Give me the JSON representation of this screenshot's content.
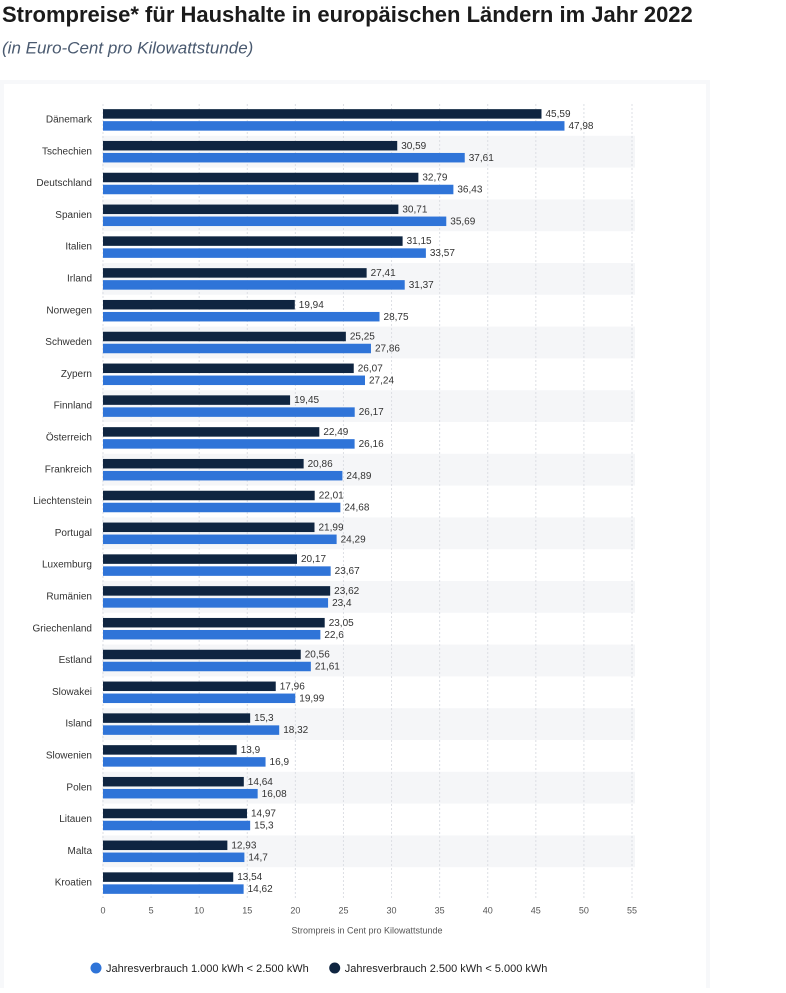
{
  "chart_data": {
    "type": "hbar",
    "title": "Strompreise* für Haushalte in europäischen Ländern im Jahr 2022",
    "subtitle": "(in Euro-Cent pro Kilowattstunde)",
    "x_label": "Strompreis in Cent pro Kilowattstunde",
    "categories": [
      "Dänemark",
      "Tschechien",
      "Deutschland",
      "Spanien",
      "Italien",
      "Irland",
      "Norwegen",
      "Schweden",
      "Zypern",
      "Finnland",
      "Österreich",
      "Frankreich",
      "Liechtenstein",
      "Portugal",
      "Luxemburg",
      "Rumänien",
      "Griechenland",
      "Estland",
      "Slowakei",
      "Island",
      "Slowenien",
      "Polen",
      "Litauen",
      "Malta",
      "Kroatien"
    ],
    "series": [
      {
        "name": "Jahresverbrauch 1.000 kWh < 2.500 kWh",
        "color": "#2f74d8",
        "values": [
          47.98,
          37.61,
          36.43,
          35.69,
          33.57,
          31.37,
          28.75,
          27.86,
          27.24,
          26.17,
          26.16,
          24.89,
          24.68,
          24.29,
          23.67,
          23.4,
          22.6,
          21.61,
          19.99,
          18.32,
          16.9,
          16.08,
          15.3,
          14.7,
          14.62
        ],
        "value_labels": [
          "47,98",
          "37,61",
          "36,43",
          "35,69",
          "33,57",
          "31,37",
          "28,75",
          "27,86",
          "27,24",
          "26,17",
          "26,16",
          "24,89",
          "24,68",
          "24,29",
          "23,67",
          "23,4",
          "22,6",
          "21,61",
          "19,99",
          "18,32",
          "16,9",
          "16,08",
          "15,3",
          "14,7",
          "14,62"
        ]
      },
      {
        "name": "Jahresverbrauch 2.500 kWh < 5.000 kWh",
        "color": "#0f2541",
        "values": [
          45.59,
          30.59,
          32.79,
          30.71,
          31.15,
          27.41,
          19.94,
          25.25,
          26.07,
          19.45,
          22.49,
          20.86,
          22.01,
          21.99,
          20.17,
          23.62,
          23.05,
          20.56,
          17.96,
          15.3,
          13.9,
          14.64,
          14.97,
          12.93,
          13.54
        ],
        "value_labels": [
          "45,59",
          "30,59",
          "32,79",
          "30,71",
          "31,15",
          "27,41",
          "19,94",
          "25,25",
          "26,07",
          "19,45",
          "22,49",
          "20,86",
          "22,01",
          "21,99",
          "20,17",
          "23,62",
          "23,05",
          "20,56",
          "17,96",
          "15,3",
          "13,9",
          "14,64",
          "14,97",
          "12,93",
          "13,54"
        ]
      }
    ],
    "xlim": [
      0,
      55
    ],
    "xticks": [
      0,
      5,
      10,
      15,
      20,
      25,
      30,
      35,
      40,
      45,
      50,
      55
    ],
    "grid": true,
    "legend": "bottom"
  }
}
